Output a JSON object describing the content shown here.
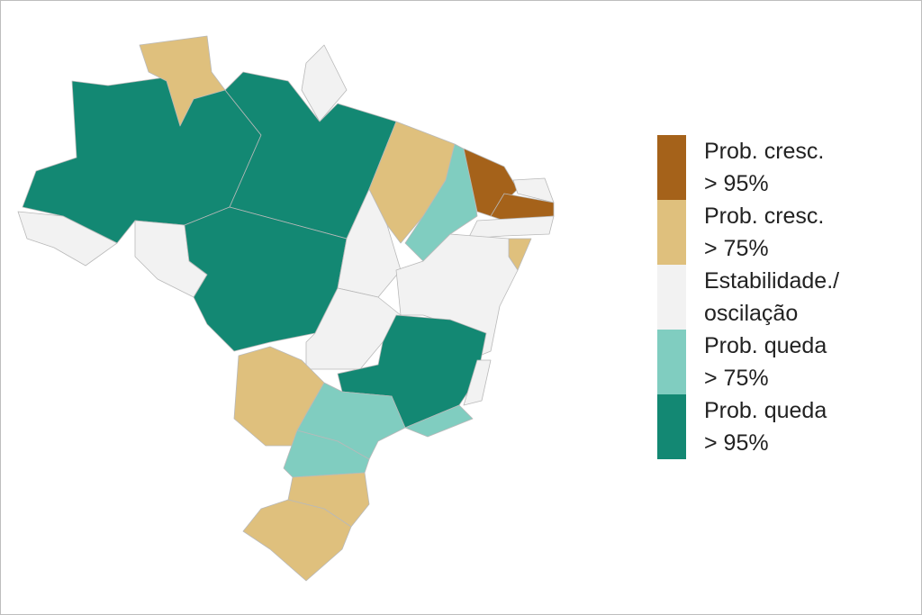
{
  "legend": {
    "items": [
      {
        "lines": [
          "Prob. cresc.",
          "> 95%"
        ],
        "color": "#a5621a"
      },
      {
        "lines": [
          "Prob. cresc.",
          "> 75%"
        ],
        "color": "#dfc07d"
      },
      {
        "lines": [
          "Estabilidade./",
          "oscilação"
        ],
        "color": "#f2f2f2"
      },
      {
        "lines": [
          "Prob. queda",
          "> 75%"
        ],
        "color": "#80cdc0"
      },
      {
        "lines": [
          "Prob. queda",
          "> 95%"
        ],
        "color": "#138873"
      }
    ]
  }
}
